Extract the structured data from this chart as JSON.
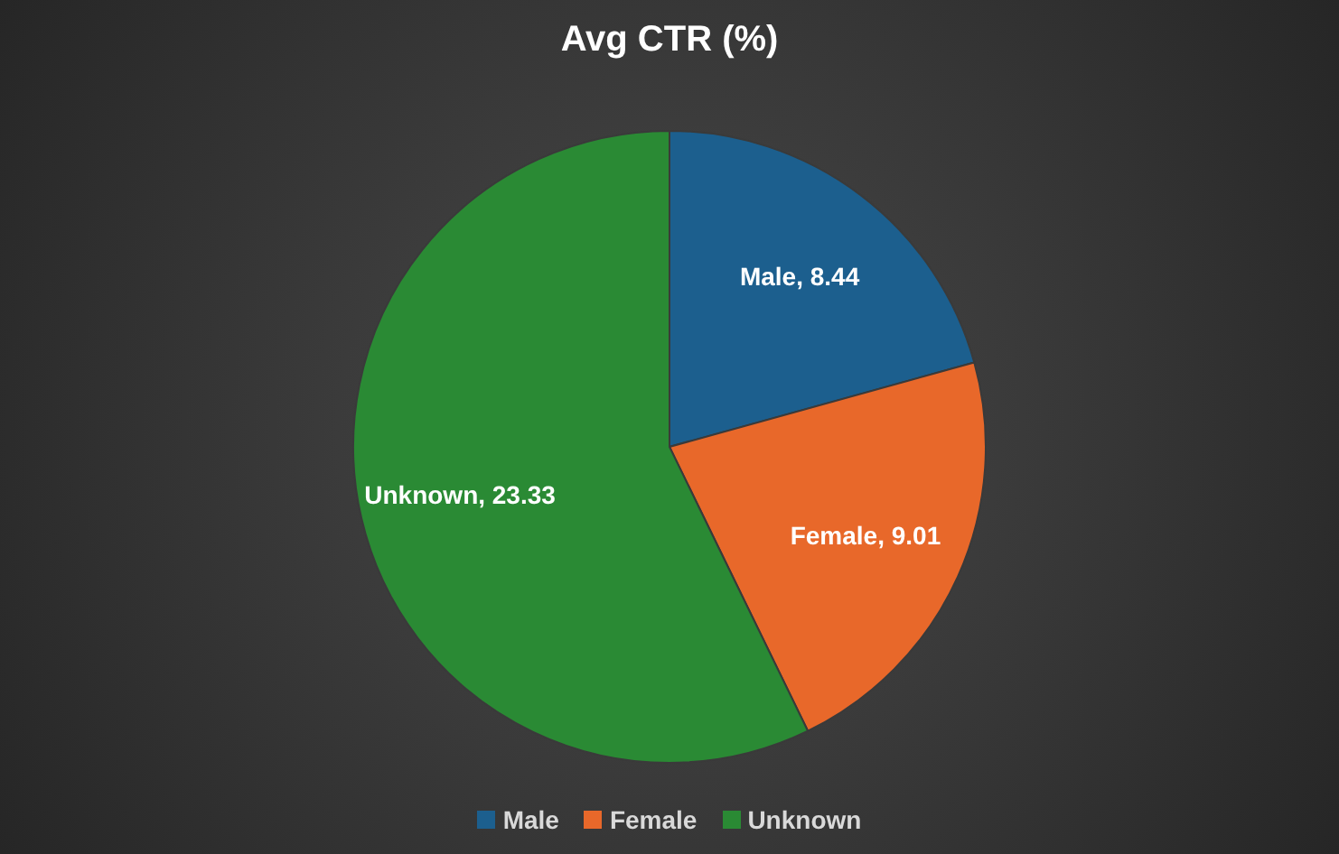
{
  "chart_data": {
    "type": "pie",
    "title": "Avg CTR (%)",
    "categories": [
      "Male",
      "Female",
      "Unknown"
    ],
    "values": [
      8.44,
      9.01,
      23.33
    ],
    "colors": [
      "#1c5f8e",
      "#e8682a",
      "#2a8a34"
    ],
    "value_labels": [
      "Male, 8.44",
      "Female, 9.01",
      "Unknown, 23.33"
    ],
    "legend": "bottom"
  }
}
